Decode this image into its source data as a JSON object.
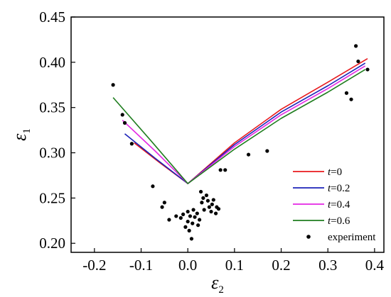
{
  "chart_data": {
    "type": "line",
    "title": "",
    "xlabel": "ε",
    "xlabel_sub": "2",
    "ylabel": "ε",
    "ylabel_sub": "1",
    "xlim": [
      -0.25,
      0.42
    ],
    "ylim": [
      0.19,
      0.45
    ],
    "xticks": [
      -0.2,
      -0.1,
      0.0,
      0.1,
      0.2,
      0.3,
      0.4
    ],
    "xtick_labels": [
      "-0.2",
      "-0.1",
      "0.0",
      "0.1",
      "0.2",
      "0.3",
      "0.4"
    ],
    "yticks": [
      0.2,
      0.25,
      0.3,
      0.35,
      0.4,
      0.45
    ],
    "ytick_labels": [
      "0.20",
      "0.25",
      "0.30",
      "0.35",
      "0.40",
      "0.45"
    ],
    "grid": false,
    "legend_position": "bottom-right",
    "series": [
      {
        "name": "t=0",
        "legend_prefix": "t",
        "legend_suffix": "=0",
        "color": "#e8191d",
        "x": [
          -0.115,
          -0.06,
          0.0,
          0.1,
          0.2,
          0.3,
          0.385
        ],
        "y": [
          0.311,
          0.289,
          0.266,
          0.311,
          0.348,
          0.378,
          0.404
        ]
      },
      {
        "name": "t=0.2",
        "legend_prefix": "t",
        "legend_suffix": "=0.2",
        "color": "#1b22b8",
        "x": [
          -0.135,
          -0.07,
          0.0,
          0.1,
          0.2,
          0.3,
          0.38
        ],
        "y": [
          0.321,
          0.294,
          0.266,
          0.309,
          0.345,
          0.374,
          0.399
        ]
      },
      {
        "name": "t=0.4",
        "legend_prefix": "t",
        "legend_suffix": "=0.4",
        "color": "#e426e4",
        "x": [
          -0.14,
          -0.07,
          0.0,
          0.1,
          0.2,
          0.3,
          0.38
        ],
        "y": [
          0.336,
          0.302,
          0.266,
          0.307,
          0.342,
          0.371,
          0.396
        ]
      },
      {
        "name": "t=0.6",
        "legend_prefix": "t",
        "legend_suffix": "=0.6",
        "color": "#1f7d1f",
        "x": [
          -0.16,
          -0.08,
          0.0,
          0.1,
          0.2,
          0.3,
          0.38
        ],
        "y": [
          0.361,
          0.314,
          0.266,
          0.304,
          0.338,
          0.367,
          0.392
        ]
      }
    ],
    "scatter": {
      "name": "experiment",
      "color": "#000000",
      "points": [
        [
          -0.16,
          0.375
        ],
        [
          -0.14,
          0.342
        ],
        [
          -0.135,
          0.333
        ],
        [
          -0.12,
          0.31
        ],
        [
          -0.075,
          0.263
        ],
        [
          -0.055,
          0.24
        ],
        [
          -0.05,
          0.245
        ],
        [
          -0.04,
          0.226
        ],
        [
          -0.025,
          0.23
        ],
        [
          -0.015,
          0.228
        ],
        [
          -0.01,
          0.232
        ],
        [
          -0.005,
          0.218
        ],
        [
          0.0,
          0.235
        ],
        [
          0.0,
          0.224
        ],
        [
          0.003,
          0.214
        ],
        [
          0.005,
          0.23
        ],
        [
          0.008,
          0.205
        ],
        [
          0.01,
          0.222
        ],
        [
          0.012,
          0.237
        ],
        [
          0.015,
          0.229
        ],
        [
          0.02,
          0.233
        ],
        [
          0.022,
          0.22
        ],
        [
          0.025,
          0.226
        ],
        [
          0.028,
          0.257
        ],
        [
          0.03,
          0.245
        ],
        [
          0.033,
          0.25
        ],
        [
          0.035,
          0.237
        ],
        [
          0.04,
          0.253
        ],
        [
          0.043,
          0.247
        ],
        [
          0.046,
          0.24
        ],
        [
          0.05,
          0.235
        ],
        [
          0.052,
          0.243
        ],
        [
          0.055,
          0.248
        ],
        [
          0.06,
          0.233
        ],
        [
          0.062,
          0.24
        ],
        [
          0.066,
          0.238
        ],
        [
          0.07,
          0.281
        ],
        [
          0.08,
          0.281
        ],
        [
          0.13,
          0.298
        ],
        [
          0.17,
          0.302
        ],
        [
          0.34,
          0.366
        ],
        [
          0.35,
          0.359
        ],
        [
          0.36,
          0.418
        ],
        [
          0.365,
          0.401
        ],
        [
          0.385,
          0.392
        ]
      ]
    }
  }
}
